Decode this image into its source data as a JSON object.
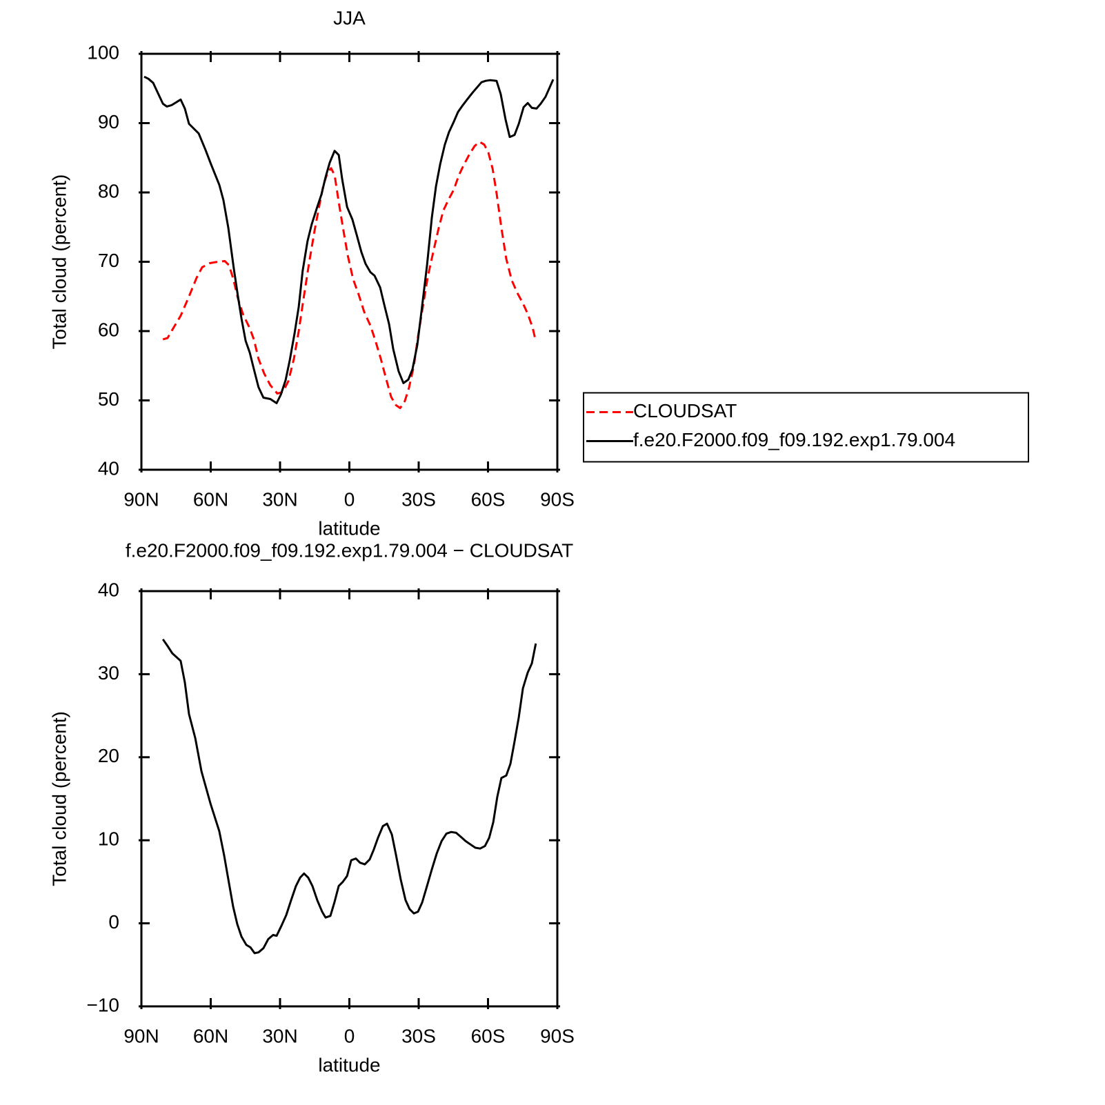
{
  "chart_data": [
    {
      "type": "line",
      "title": "JJA",
      "xlabel": "latitude",
      "ylabel": "Total cloud (percent)",
      "xlim": [
        90,
        -90
      ],
      "xticks": [
        {
          "value": 90,
          "label": "90N"
        },
        {
          "value": 60,
          "label": "60N"
        },
        {
          "value": 30,
          "label": "30N"
        },
        0,
        {
          "value": -30,
          "label": "30S"
        },
        {
          "value": -60,
          "label": "60S"
        },
        {
          "value": -90,
          "label": "90S"
        }
      ],
      "ylim": [
        40,
        100
      ],
      "yticks": [
        40,
        50,
        60,
        70,
        80,
        90,
        100
      ],
      "legend": "right",
      "series": [
        {
          "name": "CLOUDSAT",
          "color": "#ff0000",
          "dash": "dashed",
          "x": [
            80.7,
            78.7,
            76.6,
            73.0,
            69.4,
            66.1,
            63.7,
            60.4,
            56.9,
            53.9,
            52.1,
            50.3,
            48.2,
            46.1,
            43.1,
            41.3,
            39.3,
            36.9,
            34.2,
            31.2,
            28.8,
            26.4,
            24.0,
            21.9,
            19.9,
            17.5,
            15.1,
            13.0,
            11.2,
            9.4,
            7.9,
            6.4,
            4.6,
            2.5,
            0.7,
            -1.6,
            -4.0,
            -6.4,
            -9.1,
            -11.2,
            -13.6,
            -16.0,
            -18.1,
            -20.2,
            -22.0,
            -24.0,
            -25.8,
            -27.9,
            -29.7,
            -31.8,
            -33.9,
            -36.3,
            -38.7,
            -40.7,
            -42.8,
            -45.2,
            -47.3,
            -49.4,
            -51.8,
            -54.2,
            -56.3,
            -58.4,
            -60.2,
            -62.0,
            -63.7,
            -65.8,
            -67.9,
            -70.3,
            -72.7,
            -75.1,
            -77.2,
            -79.3,
            -80.7
          ],
          "values": [
            58.8,
            59.0,
            60.2,
            62.2,
            65.0,
            67.7,
            69.2,
            69.8,
            70.0,
            70.1,
            69.5,
            67.6,
            64.7,
            62.5,
            60.4,
            58.8,
            56.0,
            53.9,
            52.2,
            51.0,
            51.2,
            52.8,
            56.0,
            60.0,
            64.5,
            69.7,
            74.4,
            78.1,
            81.1,
            82.9,
            83.5,
            82.5,
            78.6,
            74.4,
            70.9,
            67.5,
            65.3,
            62.8,
            60.8,
            58.7,
            56.0,
            53.0,
            50.5,
            49.3,
            48.9,
            49.9,
            51.8,
            55.0,
            59.2,
            63.5,
            67.8,
            71.4,
            74.9,
            77.4,
            78.9,
            80.4,
            82.4,
            83.9,
            85.4,
            86.7,
            87.3,
            86.9,
            85.7,
            83.4,
            79.9,
            74.9,
            70.4,
            67.3,
            65.5,
            64.0,
            62.5,
            60.5,
            58.5
          ]
        },
        {
          "name": "f.e20.F2000.f09_f09.192.exp1.79.004",
          "color": "#000000",
          "dash": "solid",
          "x": [
            88.8,
            87.0,
            84.9,
            82.8,
            80.7,
            79.0,
            76.9,
            73.0,
            71.2,
            69.4,
            65.2,
            62.2,
            59.9,
            56.3,
            54.5,
            52.4,
            50.0,
            48.2,
            46.7,
            44.9,
            43.1,
            41.3,
            39.3,
            37.2,
            34.2,
            31.5,
            29.7,
            27.6,
            25.8,
            23.7,
            21.9,
            20.2,
            18.1,
            16.3,
            13.9,
            12.1,
            10.3,
            8.5,
            6.4,
            4.6,
            3.1,
            1.0,
            -1.3,
            -3.4,
            -5.2,
            -7.0,
            -9.1,
            -10.9,
            -13.3,
            -15.1,
            -17.2,
            -19.0,
            -21.3,
            -23.4,
            -25.5,
            -27.3,
            -29.4,
            -31.2,
            -33.6,
            -35.7,
            -37.5,
            -39.3,
            -41.3,
            -43.1,
            -45.2,
            -47.0,
            -49.1,
            -51.2,
            -53.3,
            -55.4,
            -57.2,
            -59.0,
            -61.0,
            -63.7,
            -65.5,
            -67.6,
            -69.4,
            -71.5,
            -73.3,
            -75.4,
            -77.2,
            -79.0,
            -81.0,
            -82.8,
            -84.9,
            -88.2
          ],
          "values": [
            96.7,
            96.4,
            95.8,
            94.3,
            92.8,
            92.4,
            92.6,
            93.4,
            92.1,
            89.9,
            88.5,
            86.1,
            84.1,
            81.1,
            78.9,
            74.9,
            69.0,
            65.0,
            61.8,
            58.6,
            56.9,
            54.5,
            51.9,
            50.4,
            50.2,
            49.6,
            50.8,
            52.9,
            55.8,
            59.7,
            63.5,
            68.7,
            73.0,
            75.4,
            77.9,
            79.7,
            82.2,
            84.3,
            86.0,
            85.4,
            81.9,
            77.9,
            76.1,
            73.6,
            71.4,
            69.7,
            68.5,
            68.0,
            66.3,
            63.8,
            61.0,
            57.4,
            54.2,
            52.5,
            53.0,
            54.5,
            58.0,
            62.8,
            69.5,
            76.4,
            80.9,
            84.1,
            86.9,
            88.7,
            90.2,
            91.6,
            92.6,
            93.5,
            94.4,
            95.2,
            95.9,
            96.1,
            96.2,
            96.1,
            94.2,
            90.5,
            88.0,
            88.3,
            89.9,
            92.3,
            92.9,
            92.2,
            92.1,
            92.8,
            93.8,
            96.3
          ]
        }
      ]
    },
    {
      "type": "line",
      "title": "f.e20.F2000.f09_f09.192.exp1.79.004 − CLOUDSAT",
      "xlabel": "latitude",
      "ylabel": "Total cloud (percent)",
      "xlim": [
        90,
        -90
      ],
      "xticks": [
        {
          "value": 90,
          "label": "90N"
        },
        {
          "value": 60,
          "label": "60N"
        },
        {
          "value": 30,
          "label": "30N"
        },
        0,
        {
          "value": -30,
          "label": "30S"
        },
        {
          "value": -60,
          "label": "60S"
        },
        {
          "value": -90,
          "label": "90S"
        }
      ],
      "ylim": [
        -10,
        40
      ],
      "yticks": [
        {
          "value": -10,
          "label": "−10"
        },
        0,
        10,
        20,
        30,
        40
      ],
      "series": [
        {
          "color": "#000000",
          "dash": "solid",
          "x": [
            80.7,
            78.7,
            76.6,
            73.0,
            71.2,
            69.4,
            66.7,
            64.0,
            60.1,
            56.3,
            54.2,
            52.4,
            50.3,
            48.5,
            46.7,
            44.6,
            42.8,
            41.0,
            39.3,
            37.2,
            35.1,
            33.0,
            31.5,
            29.4,
            27.3,
            25.2,
            23.1,
            21.3,
            19.6,
            17.8,
            16.0,
            13.9,
            11.8,
            10.3,
            8.2,
            6.4,
            4.6,
            2.8,
            1.0,
            -0.8,
            -2.8,
            -4.6,
            -6.7,
            -8.8,
            -10.6,
            -12.4,
            -14.5,
            -16.3,
            -18.4,
            -20.2,
            -22.2,
            -24.3,
            -26.1,
            -27.9,
            -29.7,
            -31.5,
            -33.6,
            -35.7,
            -37.8,
            -39.9,
            -42.0,
            -44.1,
            -46.2,
            -48.3,
            -50.3,
            -52.4,
            -54.5,
            -56.6,
            -58.7,
            -60.5,
            -62.3,
            -64.0,
            -65.8,
            -67.9,
            -69.7,
            -71.5,
            -73.3,
            -75.1,
            -77.2,
            -79.0,
            -80.7
          ],
          "values": [
            34.2,
            33.4,
            32.5,
            31.6,
            29.0,
            25.2,
            22.3,
            18.3,
            14.4,
            11.1,
            8.2,
            5.3,
            2.0,
            -0.1,
            -1.6,
            -2.6,
            -2.9,
            -3.6,
            -3.5,
            -3.0,
            -1.9,
            -1.4,
            -1.5,
            -0.3,
            1.0,
            2.8,
            4.5,
            5.5,
            6.0,
            5.5,
            4.5,
            2.8,
            1.4,
            0.7,
            0.9,
            2.6,
            4.5,
            5.0,
            5.7,
            7.6,
            7.8,
            7.3,
            7.1,
            7.7,
            8.9,
            10.3,
            11.7,
            12.0,
            10.7,
            8.2,
            5.3,
            2.8,
            1.7,
            1.2,
            1.4,
            2.5,
            4.5,
            6.5,
            8.4,
            9.9,
            10.8,
            11.0,
            10.9,
            10.4,
            9.9,
            9.5,
            9.1,
            9.0,
            9.3,
            10.3,
            12.2,
            15.2,
            17.5,
            17.8,
            19.2,
            21.9,
            24.8,
            28.3,
            30.2,
            31.3,
            33.7
          ]
        }
      ]
    }
  ]
}
